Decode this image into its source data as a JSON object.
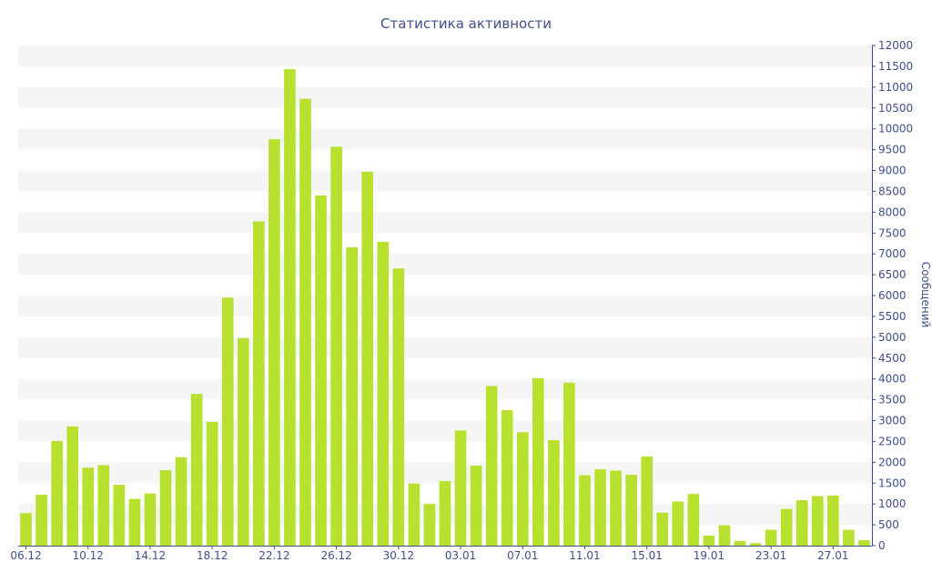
{
  "chart_data": {
    "type": "bar",
    "title": "Статистика активности",
    "ylabel": "Сообщений",
    "xlabel": "",
    "ylim": [
      0,
      12000
    ],
    "y_tick_step": 500,
    "y_axis_side": "right",
    "grid": "alternating horizontal bands",
    "bar_color": "#b8e02e",
    "axis_color": "#3e4f8a",
    "band_color": "#f5f5f5",
    "categories": [
      "06.12",
      "07.12",
      "08.12",
      "09.12",
      "10.12",
      "11.12",
      "12.12",
      "13.12",
      "14.12",
      "15.12",
      "16.12",
      "17.12",
      "18.12",
      "19.12",
      "20.12",
      "21.12",
      "22.12",
      "23.12",
      "24.12",
      "25.12",
      "26.12",
      "27.12",
      "28.12",
      "29.12",
      "30.12",
      "31.12",
      "01.01",
      "02.01",
      "03.01",
      "04.01",
      "05.01",
      "06.01",
      "07.01",
      "08.01",
      "09.01",
      "10.01",
      "11.01",
      "12.01",
      "13.01",
      "14.01",
      "15.01",
      "16.01",
      "17.01",
      "18.01",
      "19.01",
      "20.01",
      "21.01",
      "22.01",
      "23.01",
      "24.01",
      "25.01",
      "26.01",
      "27.01",
      "28.01",
      "29.01"
    ],
    "tick_labels": [
      "06.12",
      "10.12",
      "14.12",
      "18.12",
      "22.12",
      "26.12",
      "30.12",
      "03.01",
      "07.01",
      "11.01",
      "15.01",
      "19.01",
      "23.01",
      "27.01"
    ],
    "values": [
      780,
      1220,
      2510,
      2860,
      1870,
      1930,
      1460,
      1120,
      1250,
      1810,
      2120,
      3640,
      2970,
      5950,
      4980,
      7780,
      9750,
      11430,
      10720,
      8400,
      9570,
      7160,
      8970,
      7290,
      6650,
      1490,
      1000,
      1550,
      2760,
      1920,
      3830,
      3250,
      2720,
      4020,
      2530,
      3910,
      1690,
      1830,
      1800,
      1700,
      2140,
      790,
      1060,
      1240,
      240,
      490,
      110,
      60,
      380,
      880,
      1090,
      1190,
      1200,
      380,
      130
    ]
  }
}
